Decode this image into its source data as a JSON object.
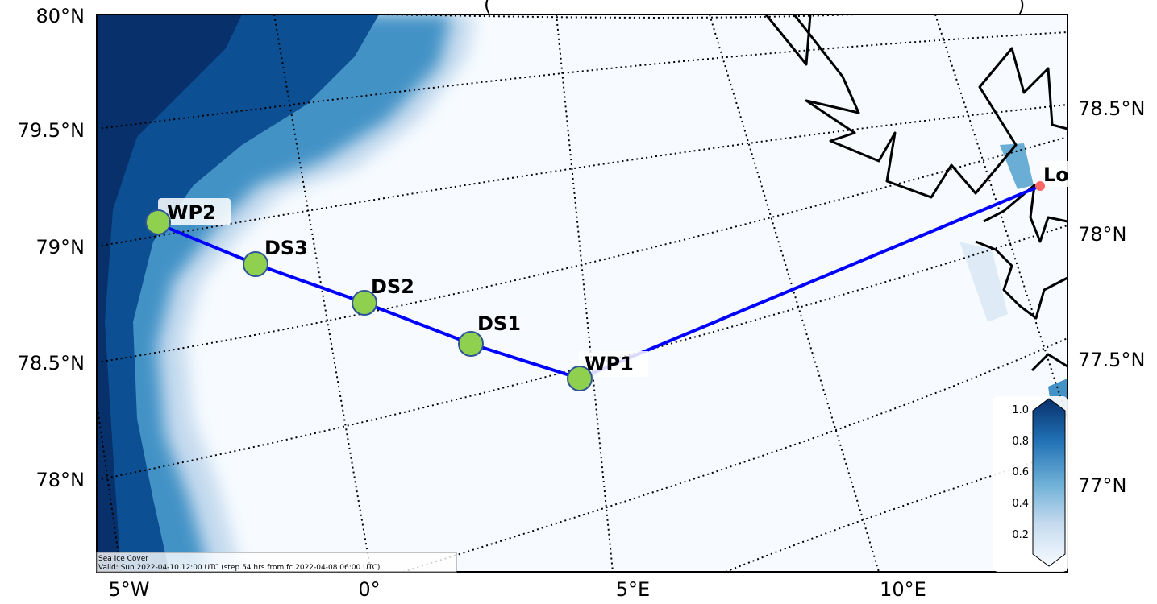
{
  "title_fragment": "(",
  "title_fragment_right": ")",
  "lat_labels_left": [
    "80°N",
    "79.5°N",
    "79°N",
    "78.5°N",
    "78°N"
  ],
  "lat_labels_right": [
    "78.5°N",
    "78°N",
    "77.5°N",
    "77°N"
  ],
  "lon_labels_bottom": [
    "5°W",
    "0°",
    "5°E",
    "10°E"
  ],
  "waypoints": [
    {
      "label": "WP2"
    },
    {
      "label": "DS3"
    },
    {
      "label": "DS2"
    },
    {
      "label": "DS1"
    },
    {
      "label": "WP1"
    },
    {
      "label": "Lo"
    }
  ],
  "colorbar": {
    "ticks": [
      "1.0",
      "0.8",
      "0.6",
      "0.4",
      "0.2"
    ],
    "min": 0,
    "max": 1.0
  },
  "caption": {
    "line1": "Sea Ice Cover",
    "line2": "Valid: Sun 2022-04-10 12:00 UTC (step 54 hrs from fc 2022-04-08 06:00 UTC)"
  },
  "colors": {
    "route": "#0000ff",
    "waypoint_fill": "#8fd14f",
    "waypoint_stroke": "#2f5597",
    "endpoint": "#ff6666",
    "ice_dark": "#08306b",
    "ice_light": "#f7fbff"
  }
}
